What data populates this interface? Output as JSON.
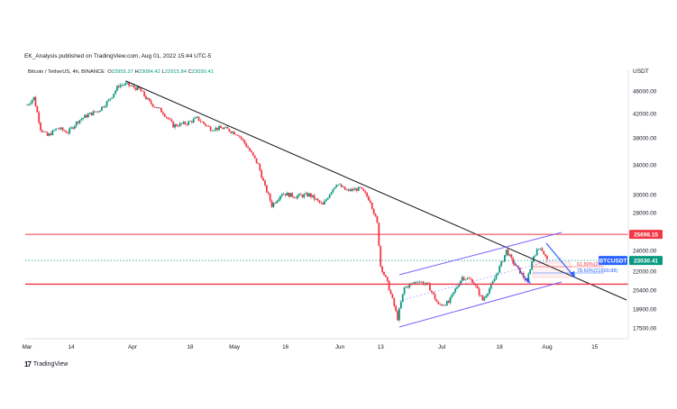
{
  "header": {
    "publisher": "EK_Analysis published on TradingView.com, Aug 01, 2022 15:44 UTC-5"
  },
  "legend": {
    "symbol": "Bitcoin / TetherUS, 4h, BINANCE",
    "open_label": "O",
    "open": "22955.37",
    "high_label": "H",
    "high": "23084.42",
    "low_label": "L",
    "low": "22915.84",
    "close_label": "C",
    "close": "23030.41"
  },
  "y_axis": {
    "currency": "USDT",
    "ticks": [
      "46000.00",
      "42000.00",
      "38000.00",
      "34000.00",
      "30000.00",
      "28000.00",
      "24000.00",
      "22000.00",
      "20400.00",
      "18900.00",
      "17500.00"
    ]
  },
  "x_axis": {
    "ticks": [
      "Mar",
      "14",
      "Apr",
      "18",
      "May",
      "16",
      "Jun",
      "13",
      "Jul",
      "18",
      "Aug",
      "15"
    ]
  },
  "price_badges": {
    "resistance": "25698.15",
    "symbol_tag": "BTCUSDT",
    "last_price": "23030.41"
  },
  "fib_labels": {
    "fib_618": "61.80%(2..",
    "fib_786": "78.60%(21500.88)"
  },
  "footer": {
    "brand": "TradingView"
  },
  "colors": {
    "up": "#089981",
    "down": "#f23645",
    "trendline": "#131722",
    "channel": "#7b61ff",
    "resistance": "#f23645",
    "support": "#f23645",
    "arrow": "#2962ff",
    "last_price_line": "#089981"
  },
  "chart_data": {
    "type": "candlestick",
    "symbol": "BTC/USDT",
    "interval": "4h",
    "ohlc_last": {
      "open": 22955.37,
      "high": 23084.42,
      "low": 22915.84,
      "close": 23030.41
    },
    "x_ticks": [
      "Mar",
      "14",
      "Apr",
      "18",
      "May",
      "16",
      "Jun",
      "13",
      "Jul",
      "18",
      "Aug",
      "15"
    ],
    "y_ticks": [
      46000,
      42000,
      38000,
      34000,
      30000,
      28000,
      24000,
      22000,
      20400,
      18900,
      17500
    ],
    "price_series": [
      {
        "d": "Mar 01",
        "p": 43500
      },
      {
        "d": "Mar 03",
        "p": 44800
      },
      {
        "d": "Mar 05",
        "p": 39500
      },
      {
        "d": "Mar 07",
        "p": 38300
      },
      {
        "d": "Mar 10",
        "p": 39600
      },
      {
        "d": "Mar 13",
        "p": 38900
      },
      {
        "d": "Mar 16",
        "p": 40800
      },
      {
        "d": "Mar 19",
        "p": 41800
      },
      {
        "d": "Mar 22",
        "p": 42500
      },
      {
        "d": "Mar 25",
        "p": 44300
      },
      {
        "d": "Mar 28",
        "p": 47000
      },
      {
        "d": "Mar 30",
        "p": 47200
      },
      {
        "d": "Apr 03",
        "p": 46300
      },
      {
        "d": "Apr 06",
        "p": 44000
      },
      {
        "d": "Apr 10",
        "p": 42200
      },
      {
        "d": "Apr 13",
        "p": 40000
      },
      {
        "d": "Apr 17",
        "p": 40400
      },
      {
        "d": "Apr 20",
        "p": 41200
      },
      {
        "d": "Apr 24",
        "p": 39500
      },
      {
        "d": "Apr 28",
        "p": 39600
      },
      {
        "d": "May 02",
        "p": 38600
      },
      {
        "d": "May 05",
        "p": 36500
      },
      {
        "d": "May 08",
        "p": 34000
      },
      {
        "d": "May 10",
        "p": 31000
      },
      {
        "d": "May 12",
        "p": 28800
      },
      {
        "d": "May 15",
        "p": 30200
      },
      {
        "d": "May 19",
        "p": 29800
      },
      {
        "d": "May 23",
        "p": 30000
      },
      {
        "d": "May 27",
        "p": 28800
      },
      {
        "d": "May 31",
        "p": 31500
      },
      {
        "d": "Jun 03",
        "p": 30500
      },
      {
        "d": "Jun 07",
        "p": 30800
      },
      {
        "d": "Jun 10",
        "p": 29300
      },
      {
        "d": "Jun 12",
        "p": 26800
      },
      {
        "d": "Jun 13",
        "p": 22500
      },
      {
        "d": "Jun 15",
        "p": 21000
      },
      {
        "d": "Jun 18",
        "p": 18200
      },
      {
        "d": "Jun 20",
        "p": 20600
      },
      {
        "d": "Jun 24",
        "p": 21200
      },
      {
        "d": "Jun 27",
        "p": 20800
      },
      {
        "d": "Jun 30",
        "p": 19200
      },
      {
        "d": "Jul 03",
        "p": 19400
      },
      {
        "d": "Jul 07",
        "p": 21500
      },
      {
        "d": "Jul 10",
        "p": 21200
      },
      {
        "d": "Jul 13",
        "p": 19600
      },
      {
        "d": "Jul 16",
        "p": 21000
      },
      {
        "d": "Jul 19",
        "p": 23100
      },
      {
        "d": "Jul 20",
        "p": 24000
      },
      {
        "d": "Jul 22",
        "p": 22800
      },
      {
        "d": "Jul 26",
        "p": 21100
      },
      {
        "d": "Jul 28",
        "p": 23500
      },
      {
        "d": "Jul 30",
        "p": 24400
      },
      {
        "d": "Aug 01",
        "p": 23030
      }
    ],
    "levels": {
      "resistance": 25698.15,
      "support": 20900,
      "last": 23030.41
    }
  }
}
